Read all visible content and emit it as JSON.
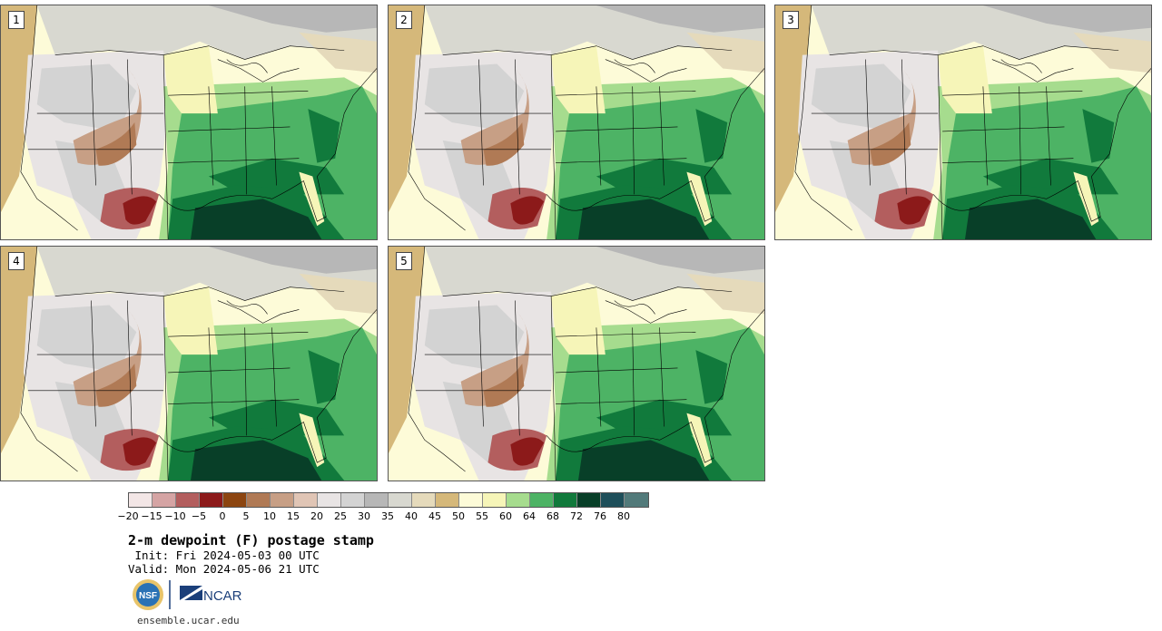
{
  "stamps": [
    {
      "label": "1"
    },
    {
      "label": "2"
    },
    {
      "label": "3"
    },
    {
      "label": "4"
    },
    {
      "label": "5"
    }
  ],
  "colorbar": {
    "colors": [
      "#f3e6e6",
      "#d5a4a4",
      "#b35e5e",
      "#8c1a1a",
      "#8c4510",
      "#b07a55",
      "#c79f85",
      "#e0c5b5",
      "#e8e4e4",
      "#d3d3d3",
      "#b7b7b7",
      "#d8d8d0",
      "#e5dabb",
      "#d5b87a",
      "#fdfbd8",
      "#f6f5b8",
      "#a6dc8e",
      "#4db365",
      "#117a3c",
      "#083f28",
      "#1e4f5a",
      "#527a7a"
    ],
    "ticks": [
      "−20",
      "−15",
      "−10",
      "−5",
      "0",
      "5",
      "10",
      "15",
      "20",
      "25",
      "30",
      "35",
      "40",
      "45",
      "50",
      "55",
      "60",
      "64",
      "68",
      "72",
      "76",
      "80"
    ]
  },
  "title": "2-m dewpoint (F) postage stamp",
  "init_line": " Init: Fri 2024-05-03 00 UTC",
  "valid_line": "Valid: Mon 2024-05-06 21 UTC",
  "logos": {
    "nsf": "NSF",
    "ncar": "NCAR"
  },
  "site": "ensemble.ucar.edu"
}
